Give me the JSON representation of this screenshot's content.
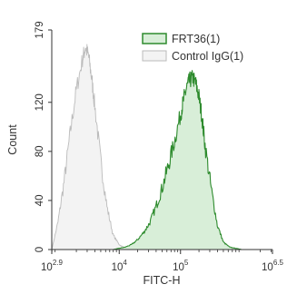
{
  "chart_data": {
    "type": "area",
    "xlabel": "FITC-H",
    "ylabel": "Count",
    "x_scale": "log",
    "xlim_exponent": [
      2.9,
      6.5
    ],
    "ylim": [
      0,
      179
    ],
    "x_ticks": [
      {
        "base": "10",
        "exp": "2.9",
        "value": 794
      },
      {
        "base": "10",
        "exp": "4",
        "value": 10000
      },
      {
        "base": "10",
        "exp": "5",
        "value": 100000
      },
      {
        "base": "10",
        "exp": "6.5",
        "value": 3162278
      }
    ],
    "y_ticks": [
      {
        "value": 0,
        "label": "0"
      },
      {
        "value": 40,
        "label": "40"
      },
      {
        "value": 80,
        "label": "80"
      },
      {
        "value": 120,
        "label": "120"
      },
      {
        "value": 179,
        "label": "179"
      }
    ],
    "legend_position": "top-right",
    "series": [
      {
        "name": "FRT36(1)",
        "color": "#2e8b2e",
        "fill": "#d8eed8",
        "x_log10": [
          3.9,
          4.0,
          4.1,
          4.2,
          4.3,
          4.4,
          4.5,
          4.6,
          4.7,
          4.8,
          4.9,
          5.0,
          5.05,
          5.1,
          5.15,
          5.2,
          5.25,
          5.3,
          5.35,
          5.4,
          5.5,
          5.6,
          5.7,
          5.8,
          5.9,
          6.0
        ],
        "counts": [
          0,
          1,
          2,
          4,
          8,
          14,
          22,
          35,
          50,
          68,
          88,
          110,
          122,
          132,
          138,
          140,
          135,
          125,
          108,
          85,
          50,
          20,
          6,
          2,
          1,
          0
        ]
      },
      {
        "name": "Control IgG(1)",
        "color": "#bbbbbb",
        "fill": "#f3f3f3",
        "x_log10": [
          2.9,
          3.0,
          3.1,
          3.2,
          3.3,
          3.4,
          3.45,
          3.5,
          3.55,
          3.6,
          3.7,
          3.8,
          3.9,
          4.0,
          4.1,
          4.2
        ],
        "counts": [
          0,
          22,
          55,
          95,
          130,
          155,
          165,
          158,
          140,
          118,
          72,
          35,
          12,
          4,
          1,
          0
        ]
      }
    ]
  }
}
